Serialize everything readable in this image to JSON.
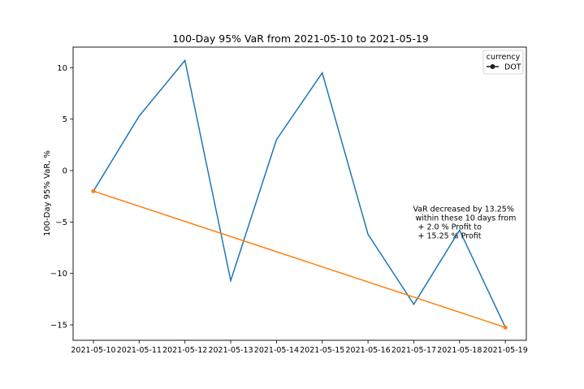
{
  "chart_data": {
    "type": "line",
    "title": "100-Day 95% VaR from 2021-05-10 to 2021-05-19",
    "xlabel": "",
    "ylabel": "100-Day 95% VaR, %",
    "categories": [
      "2021-05-10",
      "2021-05-11",
      "2021-05-12",
      "2021-05-13",
      "2021-05-14",
      "2021-05-15",
      "2021-05-16",
      "2021-05-17",
      "2021-05-18",
      "2021-05-19"
    ],
    "series": [
      {
        "values": [
          -2.0,
          5.3,
          10.7,
          -10.7,
          3.0,
          9.5,
          -6.2,
          -13.0,
          -5.8,
          -15.25
        ],
        "color": "#1f77b4",
        "marker": "none"
      },
      {
        "values": [
          -2.0,
          null,
          null,
          null,
          null,
          null,
          null,
          null,
          null,
          -15.25
        ],
        "color": "#ff7f0e",
        "marker": "circle",
        "connect": "endpoints"
      }
    ],
    "ylim": [
      -16.5,
      12
    ],
    "yticks": [
      10,
      5,
      0,
      -5,
      -10,
      -15
    ],
    "ytick_labels": [
      "10",
      "5",
      "0",
      "−5",
      "−10",
      "−15"
    ],
    "grid": false,
    "legend": {
      "title": "currency",
      "entries": [
        {
          "label": "DOT",
          "color": "#1f1f1f",
          "marker": "circle"
        }
      ],
      "placement": "top-right"
    },
    "annotation": {
      "lines": [
        "VaR decreased by 13.25%",
        " within these 10 days from",
        "  + 2.0 % Profit to",
        "  + 15.25 % Profit"
      ],
      "anchor_x": "2021-05-17",
      "anchor_y": -4.0
    }
  }
}
